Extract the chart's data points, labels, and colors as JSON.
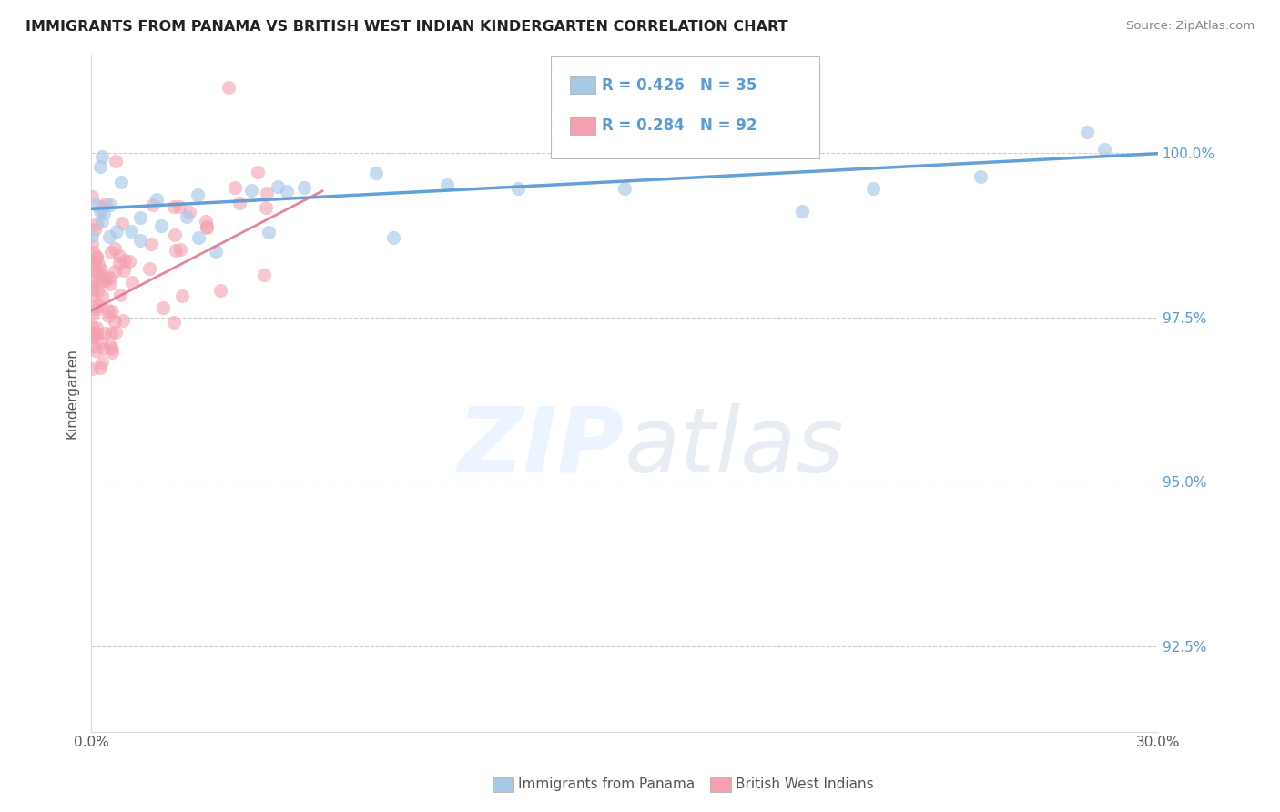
{
  "title": "IMMIGRANTS FROM PANAMA VS BRITISH WEST INDIAN KINDERGARTEN CORRELATION CHART",
  "source": "Source: ZipAtlas.com",
  "ylabel": "Kindergarten",
  "ytick_vals": [
    92.5,
    95.0,
    97.5,
    100.0
  ],
  "xlim": [
    0.0,
    30.0
  ],
  "ylim": [
    91.2,
    101.5
  ],
  "legend_label1": "Immigrants from Panama",
  "legend_label2": "British West Indians",
  "r1": 0.426,
  "n1": 35,
  "r2": 0.284,
  "n2": 92,
  "color_panama": "#a8c8e8",
  "color_bwi": "#f4a0b0",
  "line_panama": "#5b9bd5",
  "line_bwi": "#e07090",
  "ytick_color": "#5b9bd5",
  "title_color": "#222222",
  "source_color": "#888888",
  "grid_color": "#cccccc",
  "ylabel_color": "#555555"
}
